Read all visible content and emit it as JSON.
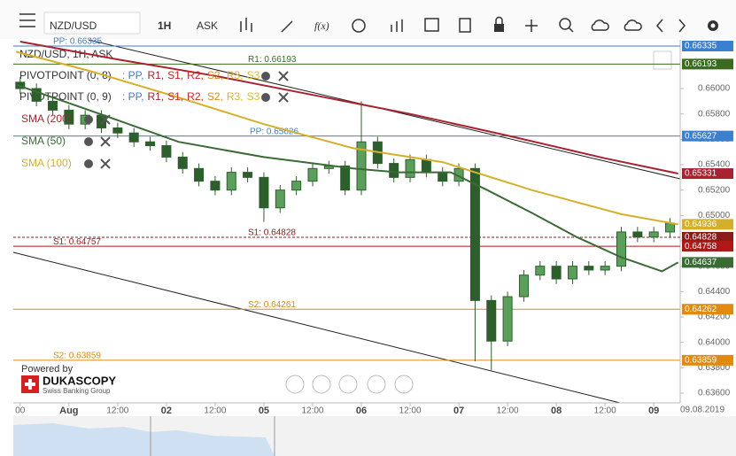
{
  "toolbar": {
    "symbol": "NZD/USD",
    "period": "1H",
    "side": "ASK",
    "fx": "f(x)"
  },
  "chart_data": {
    "type": "candlestick",
    "title": "NZD/USD, 1H, ASK",
    "date_label": "09.08.2019",
    "xlim": [
      -13.7,
      150.5
    ],
    "ylim": [
      0.63523,
      0.66384
    ],
    "xticks": [
      {
        "value": -12,
        "label": "00"
      },
      {
        "value": 0,
        "label": "Aug"
      },
      {
        "value": 12,
        "label": "12:00"
      },
      {
        "value": 24,
        "label": "02"
      },
      {
        "value": 36,
        "label": "12:00"
      },
      {
        "value": 48,
        "label": "05"
      },
      {
        "value": 60,
        "label": "12:00"
      },
      {
        "value": 72,
        "label": "06"
      },
      {
        "value": 84,
        "label": "12:00"
      },
      {
        "value": 96,
        "label": "07"
      },
      {
        "value": 108,
        "label": "12:00"
      },
      {
        "value": 120,
        "label": "08"
      },
      {
        "value": 132,
        "label": "12:00"
      },
      {
        "value": 144,
        "label": "09"
      }
    ],
    "yticks": [
      {
        "value": 0.636,
        "label": "0.63600"
      },
      {
        "value": 0.638,
        "label": "0.63800"
      },
      {
        "value": 0.64,
        "label": "0.64000"
      },
      {
        "value": 0.642,
        "label": "0.64200"
      },
      {
        "value": 0.644,
        "label": "0.64400"
      },
      {
        "value": 0.646,
        "label": "0.64600"
      },
      {
        "value": 0.648,
        "label": "0.64800"
      },
      {
        "value": 0.65,
        "label": "0.65000"
      },
      {
        "value": 0.652,
        "label": "0.65200"
      },
      {
        "value": 0.654,
        "label": "0.65400"
      },
      {
        "value": 0.656,
        "label": "0.65600"
      },
      {
        "value": 0.658,
        "label": "0.65800"
      },
      {
        "value": 0.66,
        "label": "0.66000"
      }
    ],
    "grid": false,
    "up_color": "#5aa05a",
    "down_color": "#2d5f2d",
    "x": [
      -12,
      -8,
      -4,
      0,
      4,
      8,
      12,
      16,
      20,
      24,
      28,
      32,
      36,
      40,
      44,
      48,
      52,
      56,
      60,
      64,
      68,
      72,
      76,
      80,
      84,
      88,
      92,
      96,
      100,
      104,
      108,
      112,
      116,
      120,
      124,
      128,
      132,
      136,
      140,
      144,
      148
    ],
    "open": [
      0.6605,
      0.66,
      0.659,
      0.6583,
      0.6572,
      0.6579,
      0.6569,
      0.6565,
      0.6558,
      0.6555,
      0.6546,
      0.6537,
      0.6527,
      0.652,
      0.6534,
      0.653,
      0.6506,
      0.652,
      0.6527,
      0.6537,
      0.6539,
      0.652,
      0.6558,
      0.6541,
      0.653,
      0.6544,
      0.6534,
      0.6527,
      0.6537,
      0.6433,
      0.6401,
      0.6436,
      0.6453,
      0.646,
      0.645,
      0.646,
      0.6457,
      0.646,
      0.6487,
      0.6483,
      0.6487
    ],
    "high": [
      0.6609,
      0.6604,
      0.6594,
      0.6587,
      0.6583,
      0.6583,
      0.6573,
      0.6569,
      0.6562,
      0.6559,
      0.655,
      0.6541,
      0.6531,
      0.6538,
      0.6538,
      0.6534,
      0.6524,
      0.6531,
      0.6541,
      0.6543,
      0.6543,
      0.659,
      0.6562,
      0.6545,
      0.6548,
      0.6548,
      0.6538,
      0.6541,
      0.6541,
      0.6437,
      0.644,
      0.6457,
      0.6464,
      0.6464,
      0.6464,
      0.6464,
      0.6464,
      0.6491,
      0.6491,
      0.6491,
      0.6498
    ],
    "low": [
      0.6596,
      0.6586,
      0.6579,
      0.6568,
      0.6568,
      0.6565,
      0.6561,
      0.6554,
      0.6551,
      0.6542,
      0.6533,
      0.6523,
      0.6516,
      0.6516,
      0.6526,
      0.6495,
      0.6502,
      0.6516,
      0.6523,
      0.6533,
      0.6516,
      0.6516,
      0.6537,
      0.6526,
      0.6526,
      0.653,
      0.6523,
      0.6523,
      0.6385,
      0.6378,
      0.6397,
      0.6432,
      0.6449,
      0.6446,
      0.6446,
      0.6453,
      0.6453,
      0.6456,
      0.6479,
      0.6479,
      0.6483
    ],
    "close": [
      0.66,
      0.659,
      0.6583,
      0.6572,
      0.6579,
      0.6569,
      0.6565,
      0.6558,
      0.6555,
      0.6546,
      0.6537,
      0.6527,
      0.652,
      0.6534,
      0.653,
      0.6506,
      0.652,
      0.6527,
      0.6537,
      0.6539,
      0.652,
      0.6558,
      0.6541,
      0.653,
      0.6544,
      0.6534,
      0.6527,
      0.6537,
      0.6433,
      0.6401,
      0.6436,
      0.6453,
      0.646,
      0.645,
      0.646,
      0.6457,
      0.646,
      0.6487,
      0.6483,
      0.6487,
      0.6494
    ],
    "series": [
      {
        "name": "SMA (200)",
        "color": "#a8232f",
        "tag": "0.65331",
        "x": [
          -12,
          12,
          36,
          60,
          84,
          108,
          132,
          150
        ],
        "values": [
          0.6637,
          0.6623,
          0.661,
          0.6595,
          0.658,
          0.6563,
          0.6545,
          0.6533
        ]
      },
      {
        "name": "SMA (50)",
        "color": "#3a6b35",
        "tag": "0.64637",
        "x": [
          -13,
          5,
          27,
          48,
          70,
          81,
          94,
          103,
          114,
          125,
          136,
          146,
          150
        ],
        "values": [
          0.6603,
          0.6583,
          0.6558,
          0.6546,
          0.6537,
          0.6534,
          0.6534,
          0.652,
          0.6502,
          0.6483,
          0.6467,
          0.6456,
          0.6463
        ]
      },
      {
        "name": "SMA (100)",
        "color": "#d4b02a",
        "tag": "0.64936",
        "x": [
          -13,
          5,
          27,
          48,
          70,
          92,
          114,
          136,
          150
        ],
        "values": [
          0.6629,
          0.6614,
          0.6593,
          0.6572,
          0.6553,
          0.6542,
          0.652,
          0.6501,
          0.6493
        ]
      }
    ],
    "pivots": [
      {
        "name": "PIVOTPOINT (0, 8)"
      },
      {
        "name": "PIVOTPOINT (0, 9)"
      }
    ],
    "pivot_legend": [
      {
        "text": ": PP,",
        "color": "#3a7fd0"
      },
      {
        "text": "R1,",
        "color": "#a8232f"
      },
      {
        "text": "S1,",
        "color": "#d02020"
      },
      {
        "text": "R2,",
        "color": "#d02020"
      },
      {
        "text": "S2,",
        "color": "#e08a10"
      },
      {
        "text": "R3,",
        "color": "#e0b020"
      },
      {
        "text": "S3",
        "color": "#e0c020"
      }
    ],
    "levels": [
      {
        "label": "PP: 0.66335",
        "value": 0.66335,
        "tag": "0.66335",
        "color": "#3a7fd0"
      },
      {
        "label": "R1: 0.66193",
        "value": 0.66193,
        "tag": "0.66193",
        "color": "#3a6b1f"
      },
      {
        "label": "PP: 0.65626",
        "value": 0.65626,
        "tag": "0.65627",
        "color": "#3a7fd0"
      },
      {
        "label": "S1: 0.64828",
        "value": 0.64828,
        "tag": "0.64828",
        "color": "#8b1a1a"
      },
      {
        "label": "S1: 0.64757",
        "value": 0.64757,
        "tag": "0.64758",
        "color": "#b01818"
      },
      {
        "label": "S2: 0.64261",
        "value": 0.64261,
        "tag": "0.64262",
        "color": "#e08a10"
      },
      {
        "label": "S2: 0.63859",
        "value": 0.63859,
        "tag": "0.63859",
        "color": "#e08a10"
      }
    ]
  },
  "branding": {
    "powered": "Powered by",
    "name": "DUKASCOPY",
    "sub": "Swiss Banking Group"
  }
}
